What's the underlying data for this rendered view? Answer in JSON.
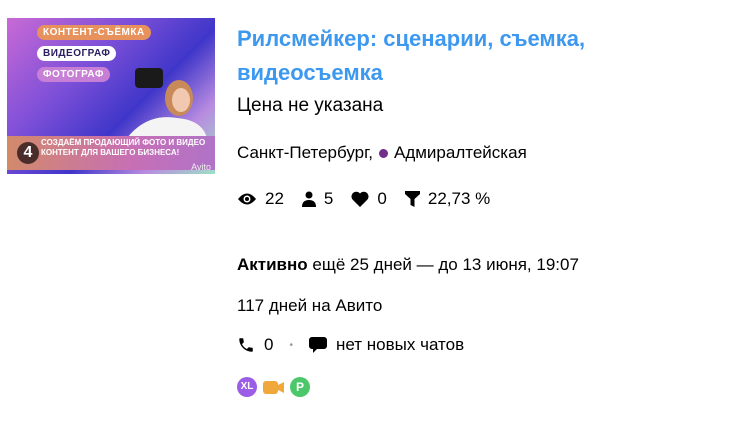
{
  "listing": {
    "image": {
      "pill1": "КОНТЕНТ-СЪЁМКА",
      "pill2": "ВИДЕОГРАФ",
      "pill3": "ФОТОГРАФ",
      "number": "4",
      "banner": "СОЗДАЁМ ПРОДАЮЩИЙ ФОТО И ВИДЕО КОНТЕНТ ДЛЯ ВАШЕГО БИЗНЕСА!",
      "watermark": "Avito"
    },
    "title": "Рилсмейкер: сценарии, съемка, видеосъемка",
    "price": "Цена не указана",
    "city": "Санкт-Петербург,",
    "metro": "Адмиралтейская",
    "metro_color": "#702f8a",
    "title_color": "#3d98f0",
    "stats": {
      "views": "22",
      "contacts": "5",
      "favorites": "0",
      "conversion": "22,73 %"
    },
    "status_bold": "Активно",
    "status_rest": "ещё 25 дней — до 13 июня, 19:07",
    "days_on_avito": "117 дней на Авито",
    "calls": "0",
    "chats": "нет новых чатов",
    "badges": [
      {
        "label": "XL",
        "color": "#9b5de5"
      },
      {
        "icon": "video-camera-icon",
        "color": "#f0a83a"
      },
      {
        "label": "P",
        "color": "#4cc86a"
      }
    ]
  }
}
